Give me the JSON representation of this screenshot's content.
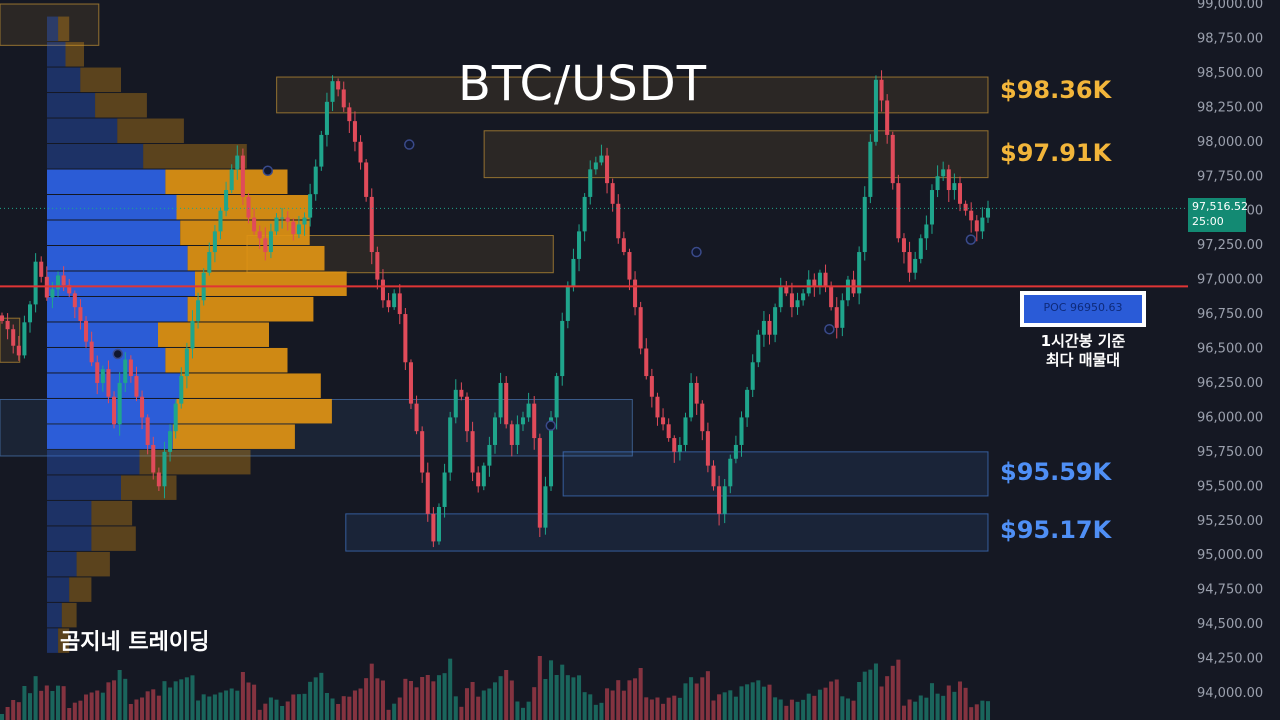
{
  "chart_data": {
    "type": "candlestick",
    "title": "BTC/USDT",
    "y_axis": {
      "range": [
        94000,
        99000
      ],
      "tick_labels": [
        "99,000.00",
        "98,750.00",
        "98,500.00",
        "98,250.00",
        "98,000.00",
        "97,750.00",
        "97,500.00",
        "97,250.00",
        "97,000.00",
        "96,750.00",
        "96,500.00",
        "96,250.00",
        "96,000.00",
        "95,750.00",
        "95,500.00",
        "95,250.00",
        "95,000.00",
        "94,750.00",
        "94,500.00",
        "94,250.00",
        "94,000.00"
      ],
      "tick_values": [
        99000,
        98750,
        98500,
        98250,
        98000,
        97750,
        97500,
        97250,
        97000,
        96750,
        96500,
        96250,
        96000,
        95750,
        95500,
        95250,
        95000,
        94750,
        94500,
        94250,
        94000
      ]
    },
    "current_price": {
      "label": "97,516.52",
      "countdown": "25:00",
      "value": 97516.52
    },
    "poc": {
      "label": "POC 96950.63",
      "value": 96950.63,
      "caption_line1": "1시간봉 기준",
      "caption_line2": "최다 매물대"
    },
    "zones": [
      {
        "label": "$98.36K",
        "low": 98210,
        "high": 98470,
        "color": "#f2b53a",
        "from": 0.28,
        "to": 1.0
      },
      {
        "label": "$97.91K",
        "low": 97740,
        "high": 98080,
        "color": "#f2b53a",
        "from": 0.49,
        "to": 1.0
      },
      {
        "label": "",
        "low": 97050,
        "high": 97320,
        "color": "#f2b53a",
        "from": 0.25,
        "to": 0.56
      },
      {
        "label": "",
        "low": 95720,
        "high": 96130,
        "color": "#5a8fd8",
        "from": 0.0,
        "to": 0.64
      },
      {
        "label": "$95.59K",
        "low": 95430,
        "high": 95750,
        "color": "#4f8ff5",
        "from": 0.57,
        "to": 1.0
      },
      {
        "label": "$95.17K",
        "low": 95030,
        "high": 95300,
        "color": "#4f8ff5",
        "from": 0.35,
        "to": 1.0
      },
      {
        "label": "",
        "low": 98700,
        "high": 99000,
        "color": "#f2b53a",
        "from": 0.0,
        "to": 0.1
      },
      {
        "label": "",
        "low": 96400,
        "high": 96720,
        "color": "#f2b53a",
        "from": 0.0,
        "to": 0.02
      }
    ],
    "volume_profile": {
      "bin_size": 185,
      "bins": [
        {
          "price": 98820,
          "buy": 3,
          "sell": 3
        },
        {
          "price": 98635,
          "buy": 5,
          "sell": 5
        },
        {
          "price": 98450,
          "buy": 9,
          "sell": 11
        },
        {
          "price": 98265,
          "buy": 13,
          "sell": 14
        },
        {
          "price": 98080,
          "buy": 19,
          "sell": 18
        },
        {
          "price": 97895,
          "buy": 26,
          "sell": 28
        },
        {
          "price": 97710,
          "buy": 32,
          "sell": 33
        },
        {
          "price": 97525,
          "buy": 35,
          "sell": 36
        },
        {
          "price": 97340,
          "buy": 36,
          "sell": 35
        },
        {
          "price": 97155,
          "buy": 38,
          "sell": 37
        },
        {
          "price": 96970,
          "buy": 40,
          "sell": 41
        },
        {
          "price": 96785,
          "buy": 38,
          "sell": 34
        },
        {
          "price": 96600,
          "buy": 30,
          "sell": 30
        },
        {
          "price": 96415,
          "buy": 32,
          "sell": 33
        },
        {
          "price": 96230,
          "buy": 36,
          "sell": 38
        },
        {
          "price": 96045,
          "buy": 35,
          "sell": 42
        },
        {
          "price": 95860,
          "buy": 34,
          "sell": 33
        },
        {
          "price": 95675,
          "buy": 25,
          "sell": 30
        },
        {
          "price": 95490,
          "buy": 20,
          "sell": 15
        },
        {
          "price": 95305,
          "buy": 12,
          "sell": 11
        },
        {
          "price": 95120,
          "buy": 12,
          "sell": 12
        },
        {
          "price": 94935,
          "buy": 8,
          "sell": 9
        },
        {
          "price": 94750,
          "buy": 6,
          "sell": 6
        },
        {
          "price": 94565,
          "buy": 4,
          "sell": 4
        },
        {
          "price": 94380,
          "buy": 3,
          "sell": 3
        }
      ]
    },
    "candles_close_path": [
      96700,
      96640,
      96520,
      96450,
      96690,
      96820,
      97130,
      97020,
      96870,
      96930,
      97030,
      96960,
      96900,
      96800,
      96700,
      96550,
      96400,
      96250,
      96350,
      96150,
      95950,
      96250,
      96420,
      96300,
      96150,
      96000,
      95800,
      95600,
      95500,
      95750,
      95900,
      96100,
      96300,
      96500,
      96700,
      96850,
      97050,
      97200,
      97350,
      97500,
      97650,
      97800,
      97900,
      97600,
      97450,
      97350,
      97300,
      97200,
      97350,
      97450,
      97450,
      97420,
      97330,
      97400,
      97450,
      97620,
      97820,
      98050,
      98290,
      98440,
      98380,
      98250,
      98150,
      98000,
      97850,
      97600,
      97200,
      97000,
      96850,
      96800,
      96900,
      96750,
      96400,
      96100,
      95900,
      95600,
      95300,
      95100,
      95350,
      95600,
      96000,
      96200,
      96150,
      95900,
      95600,
      95500,
      95650,
      95800,
      96000,
      96250,
      95950,
      95800,
      95950,
      96000,
      96100,
      95850,
      95200,
      95500,
      96000,
      96300,
      96700,
      96950,
      97150,
      97350,
      97600,
      97800,
      97850,
      97900,
      97700,
      97550,
      97300,
      97200,
      97000,
      96800,
      96500,
      96300,
      96150,
      96000,
      95950,
      95850,
      95750,
      95800,
      96000,
      96250,
      96100,
      95900,
      95650,
      95500,
      95300,
      95500,
      95700,
      95800,
      96000,
      96200,
      96400,
      96600,
      96700,
      96600,
      96800,
      96950,
      96900,
      96800,
      96850,
      96900,
      97000,
      96950,
      97050,
      96950,
      96800,
      96650,
      96850,
      97000,
      96900,
      97200,
      97600,
      98000,
      98450,
      98300,
      98050,
      97700,
      97300,
      97200,
      97050,
      97150,
      97300,
      97400,
      97650,
      97750,
      97800,
      97650,
      97700,
      97550,
      97500,
      97430,
      97350,
      97450,
      97520
    ],
    "markers": [
      {
        "index": 27,
        "price": 96460
      },
      {
        "index": 62,
        "price": 97790
      },
      {
        "index": 95,
        "price": 97980
      },
      {
        "index": 128,
        "price": 95940
      },
      {
        "index": 162,
        "price": 97200
      },
      {
        "index": 193,
        "price": 96640
      },
      {
        "index": 226,
        "price": 97290
      }
    ]
  },
  "watermark": "곰지네 트레이딩",
  "colors": {
    "up": "#1fa58c",
    "down": "#e04b5a",
    "buy": "#2e63e6",
    "sell": "#e09414",
    "poc_line": "#e03535",
    "background": "#151823"
  }
}
